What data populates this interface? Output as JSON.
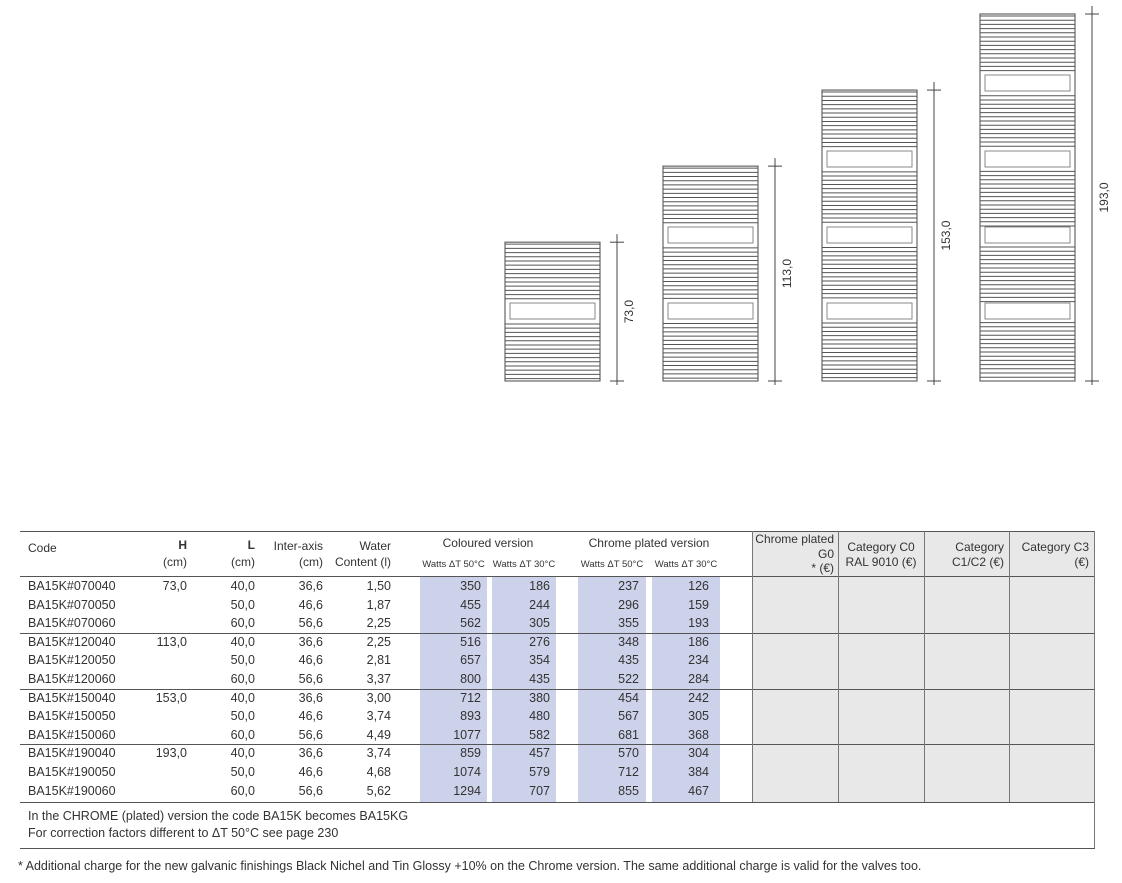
{
  "drawings": [
    {
      "height_label": "73,0",
      "height_cm": 73.0
    },
    {
      "height_label": "113,0",
      "height_cm": 113.0
    },
    {
      "height_label": "153,0",
      "height_cm": 153.0
    },
    {
      "height_label": "193,0",
      "height_cm": 193.0
    }
  ],
  "table": {
    "headers": {
      "code": "Code",
      "h": "H",
      "h_unit": "(cm)",
      "l": "L",
      "l_unit": "(cm)",
      "interaxis": "Inter-axis",
      "interaxis_unit": "(cm)",
      "water": "Water",
      "water_unit": "Content (l)",
      "coloured": "Coloured version",
      "chrome": "Chrome plated version",
      "watts50": "Watts ΔT 50°C",
      "watts30": "Watts ΔT 30°C",
      "chrome_g0_1": "Chrome plated",
      "chrome_g0_2": "G0",
      "chrome_g0_3": "*  (€)",
      "c0_1": "Category C0",
      "c0_2": "RAL 9010 (€)",
      "c12_1": "Category",
      "c12_2": "C1/C2  (€)",
      "c3_1": "Category C3",
      "c3_2": "(€)"
    },
    "rows": [
      [
        "BA15K#070040",
        "73,0",
        "40,0",
        "36,6",
        "1,50",
        "350",
        "186",
        "237",
        "126"
      ],
      [
        "BA15K#070050",
        "",
        "50,0",
        "46,6",
        "1,87",
        "455",
        "244",
        "296",
        "159"
      ],
      [
        "BA15K#070060",
        "",
        "60,0",
        "56,6",
        "2,25",
        "562",
        "305",
        "355",
        "193"
      ],
      [
        "BA15K#120040",
        "113,0",
        "40,0",
        "36,6",
        "2,25",
        "516",
        "276",
        "348",
        "186"
      ],
      [
        "BA15K#120050",
        "",
        "50,0",
        "46,6",
        "2,81",
        "657",
        "354",
        "435",
        "234"
      ],
      [
        "BA15K#120060",
        "",
        "60,0",
        "56,6",
        "3,37",
        "800",
        "435",
        "522",
        "284"
      ],
      [
        "BA15K#150040",
        "153,0",
        "40,0",
        "36,6",
        "3,00",
        "712",
        "380",
        "454",
        "242"
      ],
      [
        "BA15K#150050",
        "",
        "50,0",
        "46,6",
        "3,74",
        "893",
        "480",
        "567",
        "305"
      ],
      [
        "BA15K#150060",
        "",
        "60,0",
        "56,6",
        "4,49",
        "1077",
        "582",
        "681",
        "368"
      ],
      [
        "BA15K#190040",
        "193,0",
        "40,0",
        "36,6",
        "3,74",
        "859",
        "457",
        "570",
        "304"
      ],
      [
        "BA15K#190050",
        "",
        "50,0",
        "46,6",
        "4,68",
        "1074",
        "579",
        "712",
        "384"
      ],
      [
        "BA15K#190060",
        "",
        "60,0",
        "56,6",
        "5,62",
        "1294",
        "707",
        "855",
        "467"
      ]
    ],
    "notes": [
      "In the CHROME (plated) version the code BA15K becomes BA15KG",
      "For correction factors different to ΔT 50°C see page  230"
    ]
  },
  "footnote": "* Additional charge for the new galvanic finishings Black Nichel and Tin Glossy +10% on the Chrome version. The same additional charge is valid for the valves too.",
  "colors": {
    "highlight": "#ccd2ea",
    "price_bg": "#e8e8e8"
  }
}
